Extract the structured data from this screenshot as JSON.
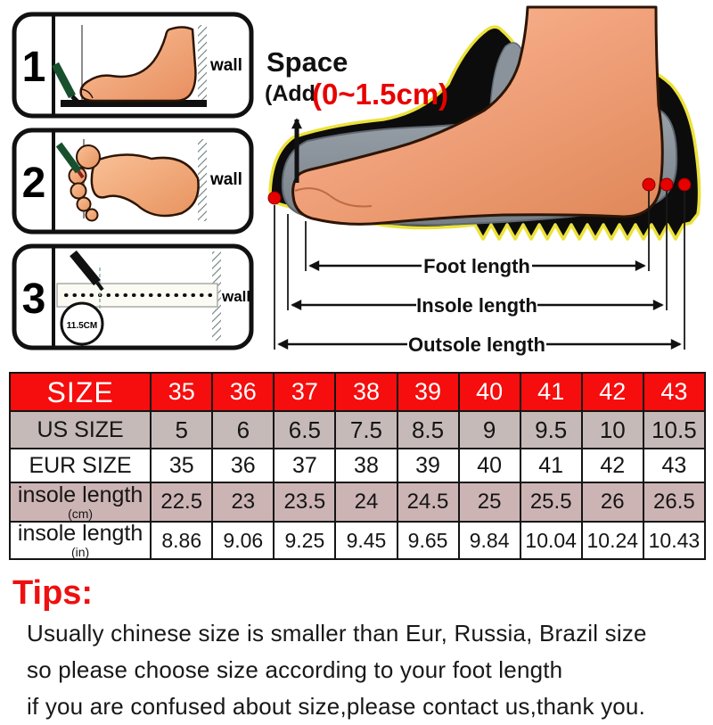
{
  "panels": [
    {
      "number": "1",
      "wall_label": "wall"
    },
    {
      "number": "2",
      "wall_label": "wall"
    },
    {
      "number": "3",
      "wall_label": "wall",
      "circle_label": "11.5CM"
    }
  ],
  "diagram": {
    "space_title": "Space",
    "space_prefix": "(Add",
    "space_range": "(0~1.5cm)",
    "foot_length_label": "Foot length",
    "insole_length_label": "Insole length",
    "outsole_length_label": "Outsole length"
  },
  "size_table": {
    "rows": [
      {
        "label": "SIZE",
        "sublabel": "",
        "style": "red",
        "values": [
          "35",
          "36",
          "37",
          "38",
          "39",
          "40",
          "41",
          "42",
          "43"
        ]
      },
      {
        "label": "US SIZE",
        "sublabel": "",
        "style": "mauve",
        "values": [
          "5",
          "6",
          "6.5",
          "7.5",
          "8.5",
          "9",
          "9.5",
          "10",
          "10.5"
        ]
      },
      {
        "label": "EUR SIZE",
        "sublabel": "",
        "style": "white-a",
        "values": [
          "35",
          "36",
          "37",
          "38",
          "39",
          "40",
          "41",
          "42",
          "43"
        ]
      },
      {
        "label": "insole length",
        "sublabel": "(cm)",
        "style": "pink",
        "values": [
          "22.5",
          "23",
          "23.5",
          "24",
          "24.5",
          "25",
          "25.5",
          "26",
          "26.5"
        ]
      },
      {
        "label": "insole length",
        "sublabel": "(in)",
        "style": "white-b",
        "values": [
          "8.86",
          "9.06",
          "9.25",
          "9.45",
          "9.65",
          "9.84",
          "10.04",
          "10.24",
          "10.43"
        ]
      }
    ]
  },
  "tips": {
    "title": "Tips:",
    "lines": [
      "Usually chinese size is smaller than Eur, Russia, Brazil size",
      "so please choose size according to your foot length",
      "if you are confused about size,please contact us,thank you."
    ]
  },
  "colors": {
    "table_header_bg": "#f60d0d",
    "table_row_mauve": "#c6bab8",
    "table_row_pink": "#cdb4b4",
    "accent_red": "#e80000",
    "tips_red": "#ee1010",
    "foot_skin": "#f2a47e",
    "insole_gray": "#8a939b",
    "outsole_black": "#0c0c0c",
    "outsole_outline_yellow": "#ece23a",
    "ruler_green": "#17502c"
  }
}
